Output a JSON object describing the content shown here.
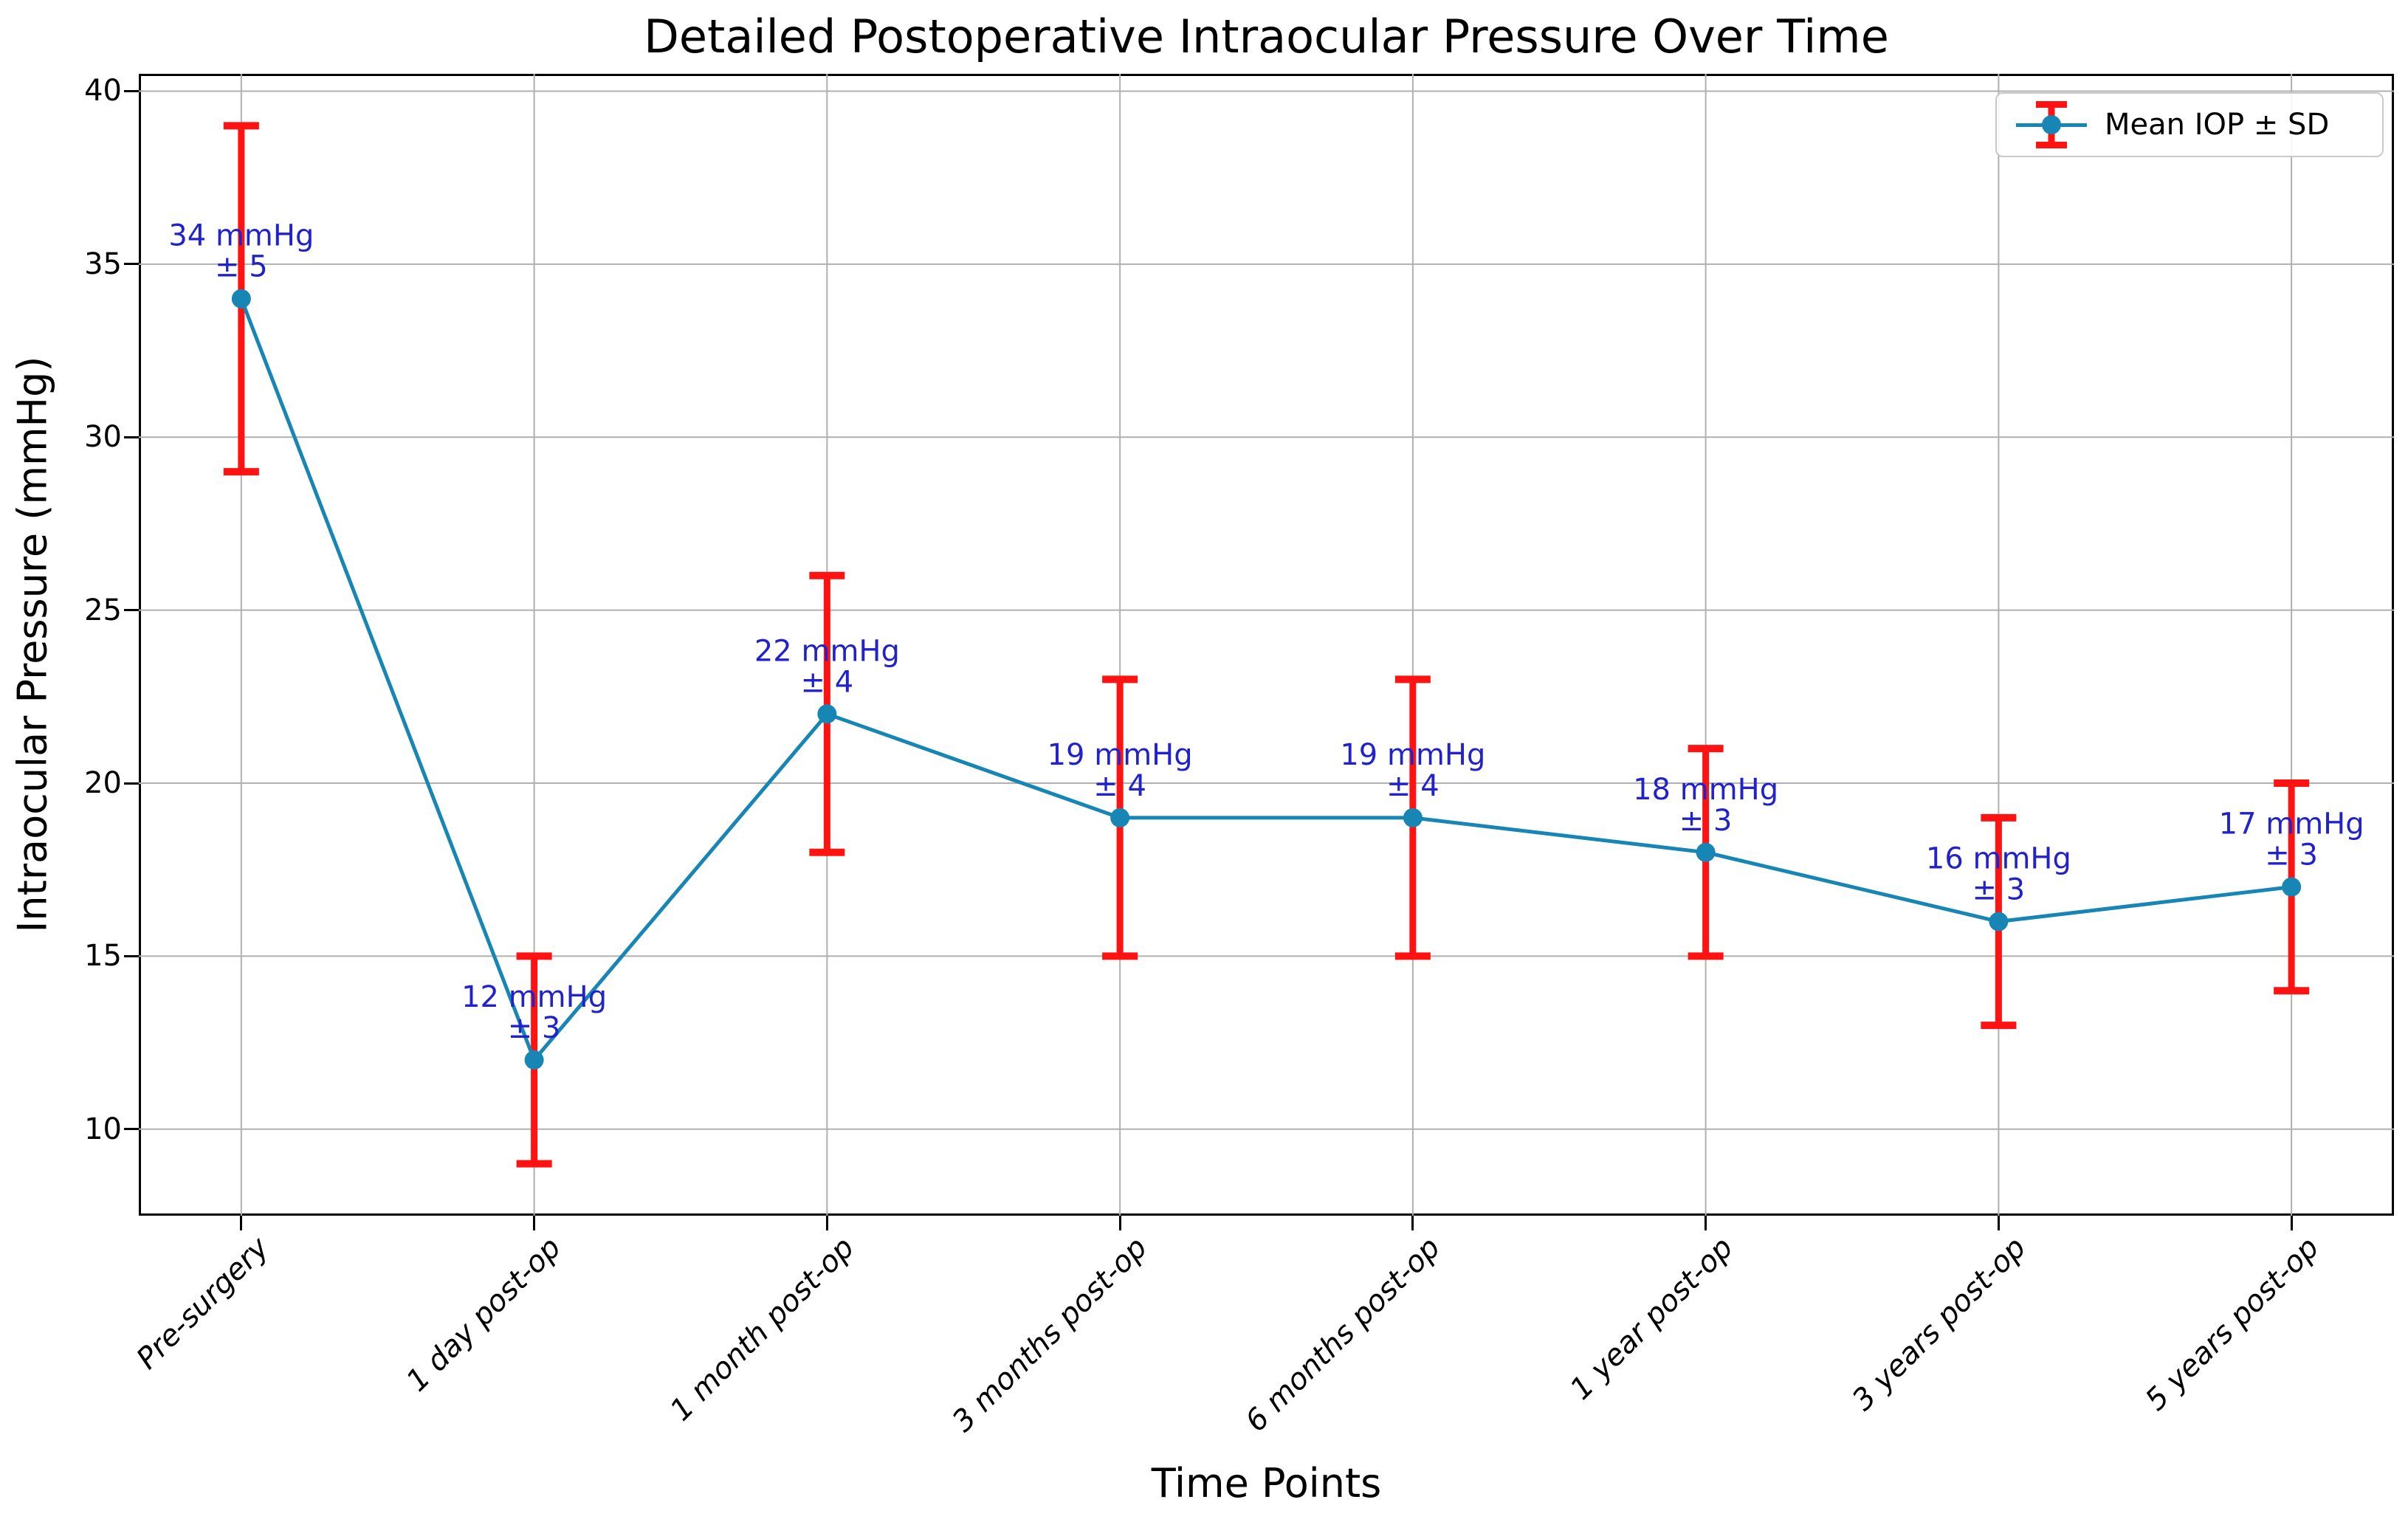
{
  "chart_data": {
    "type": "line",
    "title": "Detailed Postoperative Intraocular Pressure Over Time",
    "xlabel": "Time Points",
    "ylabel": "Intraocular Pressure (mmHg)",
    "categories": [
      "Pre-surgery",
      "1 day post-op",
      "1 month post-op",
      "3 months post-op",
      "6 months post-op",
      "1 year post-op",
      "3 years post-op",
      "5 years post-op"
    ],
    "series": [
      {
        "name": "Mean IOP ± SD",
        "values": [
          34,
          12,
          22,
          19,
          19,
          18,
          16,
          17
        ],
        "sd": [
          5,
          3,
          4,
          4,
          4,
          3,
          3,
          3
        ]
      }
    ],
    "point_labels": [
      {
        "line1": "34 mmHg",
        "line2": "± 5"
      },
      {
        "line1": "12 mmHg",
        "line2": "± 3"
      },
      {
        "line1": "22 mmHg",
        "line2": "± 4"
      },
      {
        "line1": "19 mmHg",
        "line2": "± 4"
      },
      {
        "line1": "19 mmHg",
        "line2": "± 4"
      },
      {
        "line1": "18 mmHg",
        "line2": "± 3"
      },
      {
        "line1": "16 mmHg",
        "line2": "± 3"
      },
      {
        "line1": "17 mmHg",
        "line2": "± 3"
      }
    ],
    "y_ticks": [
      40,
      35,
      30,
      25,
      20,
      15,
      10
    ],
    "ylim": [
      7.5,
      40.5
    ],
    "grid": true,
    "legend": {
      "label": "Mean IOP ± SD",
      "position": "upper right"
    },
    "colors": {
      "line": "#1786b5",
      "error": "#ff1212",
      "annotation": "#2222cc",
      "grid": "#b0b0b0",
      "spine": "#000000",
      "legend_border": "#c9c9c9",
      "text": "#000000"
    }
  }
}
